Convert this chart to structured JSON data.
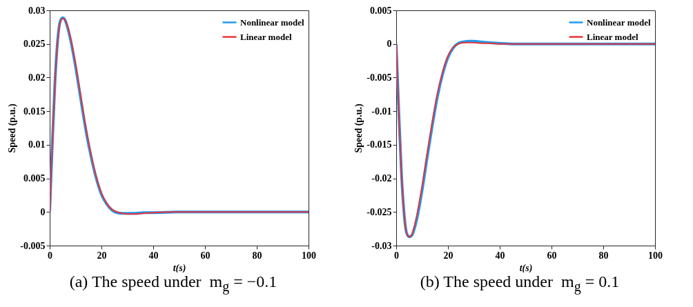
{
  "chart_data": [
    {
      "type": "line",
      "title": "(a) The speed under  m$_{g}$ = −0.1",
      "xlabel": "t(s)",
      "ylabel": "Speed (p.u.)",
      "legend": "top right",
      "grid": false,
      "xlim": [
        0,
        100
      ],
      "xticks": [
        0,
        20,
        40,
        60,
        80,
        100
      ],
      "ylim": [
        -0.005,
        0.03
      ],
      "yticks": [
        -0.005,
        0,
        0.005,
        0.01,
        0.015,
        0.02,
        0.025,
        0.03
      ],
      "x": [
        0,
        1,
        2,
        3,
        4,
        5,
        6,
        7,
        8,
        10,
        12,
        14,
        16,
        18,
        20,
        22,
        24,
        26,
        28,
        30,
        33,
        36,
        40,
        50,
        60,
        100
      ],
      "series": [
        {
          "name": "Nonlinear model",
          "color": "#1f9bf0",
          "values": [
            0,
            0.01,
            0.019,
            0.0252,
            0.0283,
            0.0289,
            0.0285,
            0.0273,
            0.0257,
            0.0216,
            0.0168,
            0.0121,
            0.0082,
            0.005,
            0.0026,
            0.0012,
            0.0003,
            -0.0001,
            -0.0002,
            -0.0002,
            -0.0002,
            -0.0001,
            -0.0001,
            0,
            0,
            0
          ]
        },
        {
          "name": "Linear model",
          "color": "#e8333a",
          "values": [
            0,
            0.01,
            0.019,
            0.025,
            0.0281,
            0.0288,
            0.0285,
            0.0275,
            0.026,
            0.022,
            0.0172,
            0.0125,
            0.0085,
            0.0052,
            0.0028,
            0.0013,
            0.0004,
            0,
            -0.0002,
            -0.0003,
            -0.0003,
            -0.0002,
            -0.0001,
            0,
            0,
            0
          ]
        }
      ]
    },
    {
      "type": "line",
      "title": "(b) The speed under  m$_{g}$ = 0.1",
      "xlabel": "t(s)",
      "ylabel": "Speed (p.u.)",
      "legend": "top right",
      "grid": false,
      "xlim": [
        0,
        100
      ],
      "xticks": [
        0,
        20,
        40,
        60,
        80,
        100
      ],
      "ylim": [
        -0.03,
        0.005
      ],
      "yticks": [
        -0.03,
        -0.025,
        -0.02,
        -0.015,
        -0.01,
        -0.005,
        0,
        0.005
      ],
      "x": [
        0,
        1,
        2,
        3,
        4,
        5,
        6,
        7,
        8,
        10,
        12,
        14,
        16,
        18,
        20,
        22,
        24,
        26,
        28,
        30,
        33,
        36,
        40,
        45,
        50,
        60,
        100
      ],
      "series": [
        {
          "name": "Nonlinear model",
          "color": "#1f9bf0",
          "values": [
            0,
            -0.01,
            -0.019,
            -0.025,
            -0.0281,
            -0.0287,
            -0.0285,
            -0.0275,
            -0.026,
            -0.0218,
            -0.0168,
            -0.012,
            -0.0077,
            -0.0044,
            -0.002,
            -0.0006,
            0.0001,
            0.0003,
            0.0004,
            0.0004,
            0.0003,
            0.0002,
            0.0001,
            0,
            0,
            0,
            0
          ]
        },
        {
          "name": "Linear model",
          "color": "#e8333a",
          "values": [
            0,
            -0.01,
            -0.019,
            -0.025,
            -0.0281,
            -0.0287,
            -0.0284,
            -0.0272,
            -0.0255,
            -0.0212,
            -0.0162,
            -0.0115,
            -0.0073,
            -0.0041,
            -0.0018,
            -0.0005,
            0,
            0.0002,
            0.0002,
            0.0002,
            0.0001,
            0.0001,
            0,
            0,
            0,
            0,
            0
          ]
        }
      ]
    }
  ]
}
